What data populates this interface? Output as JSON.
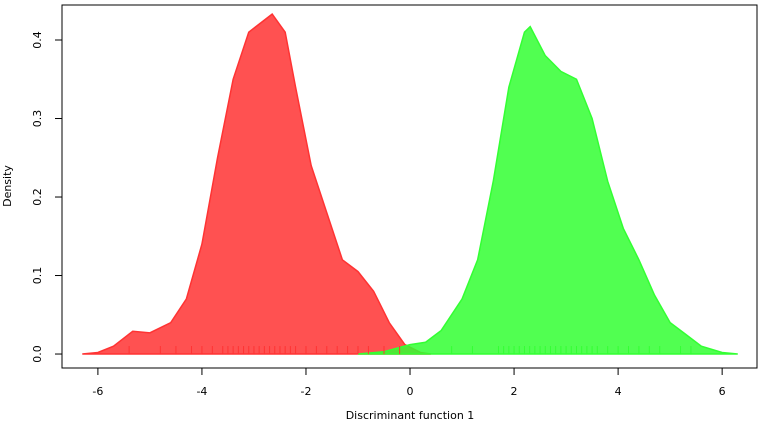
{
  "chart_data": {
    "type": "density",
    "xlabel": "Discriminant function 1",
    "ylabel": "Density",
    "xlim": [
      -6.69,
      6.67
    ],
    "ylim": [
      -0.0178,
      0.4446
    ],
    "xticks": [
      -6,
      -4,
      -2,
      0,
      2,
      4,
      6
    ],
    "yticks": [
      {
        "value": 0,
        "label": "0.0"
      },
      0.1,
      0.2,
      0.3,
      0.4
    ],
    "series": [
      {
        "color": "#ff3333",
        "x": [
          -6.3,
          -6.0,
          -5.7,
          -5.33,
          -5.0,
          -4.6,
          -4.3,
          -4.0,
          -3.7,
          -3.4,
          -3.1,
          -2.65,
          -2.4,
          -2.2,
          -1.9,
          -1.6,
          -1.3,
          -1.0,
          -0.7,
          -0.4,
          -0.1,
          0.2,
          0.4
        ],
        "values": [
          0,
          0.002,
          0.01,
          0.029,
          0.027,
          0.04,
          0.07,
          0.14,
          0.25,
          0.35,
          0.41,
          0.433,
          0.41,
          0.34,
          0.24,
          0.18,
          0.12,
          0.105,
          0.08,
          0.04,
          0.012,
          0.002,
          0
        ],
        "rug": [
          -5.4,
          -4.8,
          -4.5,
          -4.2,
          -4.0,
          -3.8,
          -3.6,
          -3.5,
          -3.4,
          -3.3,
          -3.2,
          -3.1,
          -3.0,
          -2.9,
          -2.8,
          -2.7,
          -2.6,
          -2.5,
          -2.4,
          -2.3,
          -2.2,
          -2.0,
          -1.8,
          -1.6,
          -1.4,
          -1.2,
          -1.0,
          -0.8,
          -0.5,
          -0.2
        ]
      },
      {
        "color": "#33ff33",
        "x": [
          -1.0,
          -0.5,
          0,
          0.3,
          0.6,
          1.0,
          1.3,
          1.6,
          1.9,
          2.2,
          2.31,
          2.6,
          2.9,
          3.2,
          3.5,
          3.8,
          4.1,
          4.4,
          4.7,
          5.0,
          5.3,
          5.6,
          6.0,
          6.3
        ],
        "values": [
          0,
          0.003,
          0.012,
          0.015,
          0.03,
          0.07,
          0.12,
          0.22,
          0.34,
          0.41,
          0.417,
          0.38,
          0.36,
          0.35,
          0.3,
          0.22,
          0.16,
          0.12,
          0.075,
          0.04,
          0.025,
          0.01,
          0.002,
          0
        ],
        "rug": [
          0.8,
          1.2,
          1.7,
          1.8,
          1.9,
          2.0,
          2.1,
          2.2,
          2.3,
          2.4,
          2.5,
          2.6,
          2.7,
          2.8,
          2.9,
          3.0,
          3.1,
          3.2,
          3.3,
          3.4,
          3.5,
          3.6,
          3.8,
          4.0,
          4.2,
          4.4,
          4.6,
          4.8,
          5.2,
          5.4
        ]
      }
    ]
  }
}
